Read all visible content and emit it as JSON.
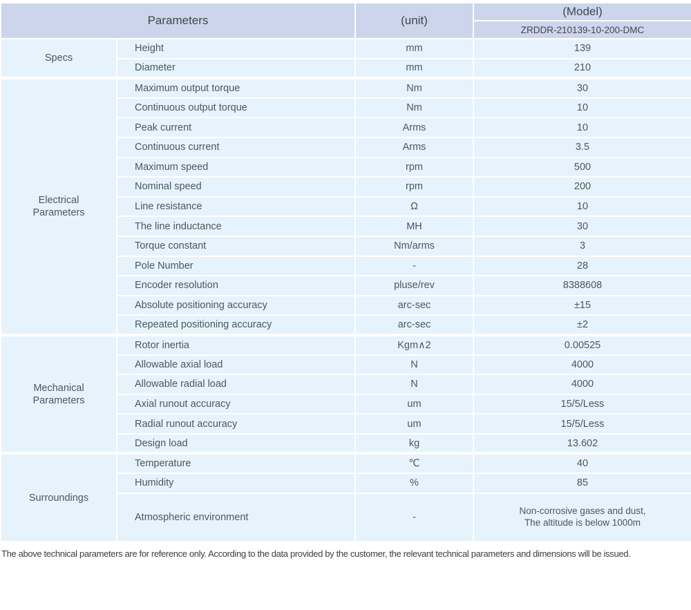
{
  "header": {
    "parameters_label": "Parameters",
    "unit_label": "(unit)",
    "model_label": "(Model)",
    "model_value": "ZRDDR-210139-10-200-DMC"
  },
  "sections": [
    {
      "group": "Specs",
      "rows": [
        [
          "Height",
          "mm",
          "139"
        ],
        [
          "Diameter",
          "mm",
          "210"
        ]
      ]
    },
    {
      "group": "Electrical\nParameters",
      "rows": [
        [
          "Maximum output torque",
          "Nm",
          "30"
        ],
        [
          "Continuous output torque",
          "Nm",
          "10"
        ],
        [
          "Peak current",
          "Arms",
          "10"
        ],
        [
          "Continuous current",
          "Arms",
          "3.5"
        ],
        [
          "Maximum speed",
          "rpm",
          "500"
        ],
        [
          "Nominal speed",
          "rpm",
          "200"
        ],
        [
          "Line resistance",
          "Ω",
          "10"
        ],
        [
          "The line inductance",
          "MH",
          "30"
        ],
        [
          "Torque constant",
          "Nm/arms",
          "3"
        ],
        [
          "Pole Number",
          "-",
          "28"
        ],
        [
          "Encoder resolution",
          "pluse/rev",
          "8388608"
        ],
        [
          "Absolute positioning accuracy",
          "arc-sec",
          "±15"
        ],
        [
          "Repeated positioning accuracy",
          "arc-sec",
          "±2"
        ]
      ]
    },
    {
      "group": "Mechanical\nParameters",
      "rows": [
        [
          "Rotor inertia",
          "Kgm∧2",
          "0.00525"
        ],
        [
          "Allowable axial load",
          "N",
          "4000"
        ],
        [
          "Allowable radial load",
          "N",
          "4000"
        ],
        [
          "Axial runout accuracy",
          "um",
          "15/5/Less"
        ],
        [
          "Radial runout accuracy",
          "um",
          "15/5/Less"
        ],
        [
          "Design load",
          "kg",
          "13.602"
        ]
      ]
    },
    {
      "group": "Surroundings",
      "rows": [
        [
          "Temperature",
          "℃",
          "40"
        ],
        [
          "Humidity",
          "%",
          "85"
        ],
        [
          "Atmospheric environment",
          "-",
          "Non-corrosive gases and dust,\nThe altitude is below 1000m"
        ]
      ]
    }
  ],
  "footer": {
    "note": "The above technical parameters are for reference only. According to the data provided by the customer, the relevant technical parameters and dimensions will be issued."
  },
  "colors": {
    "header_bg": "#ccd5ec",
    "row_bg": "#e6f3fc",
    "grid": "#ffffff",
    "header_text": "#41474e",
    "body_text": "#4e565e",
    "footer_text": "#3d3d3d"
  }
}
